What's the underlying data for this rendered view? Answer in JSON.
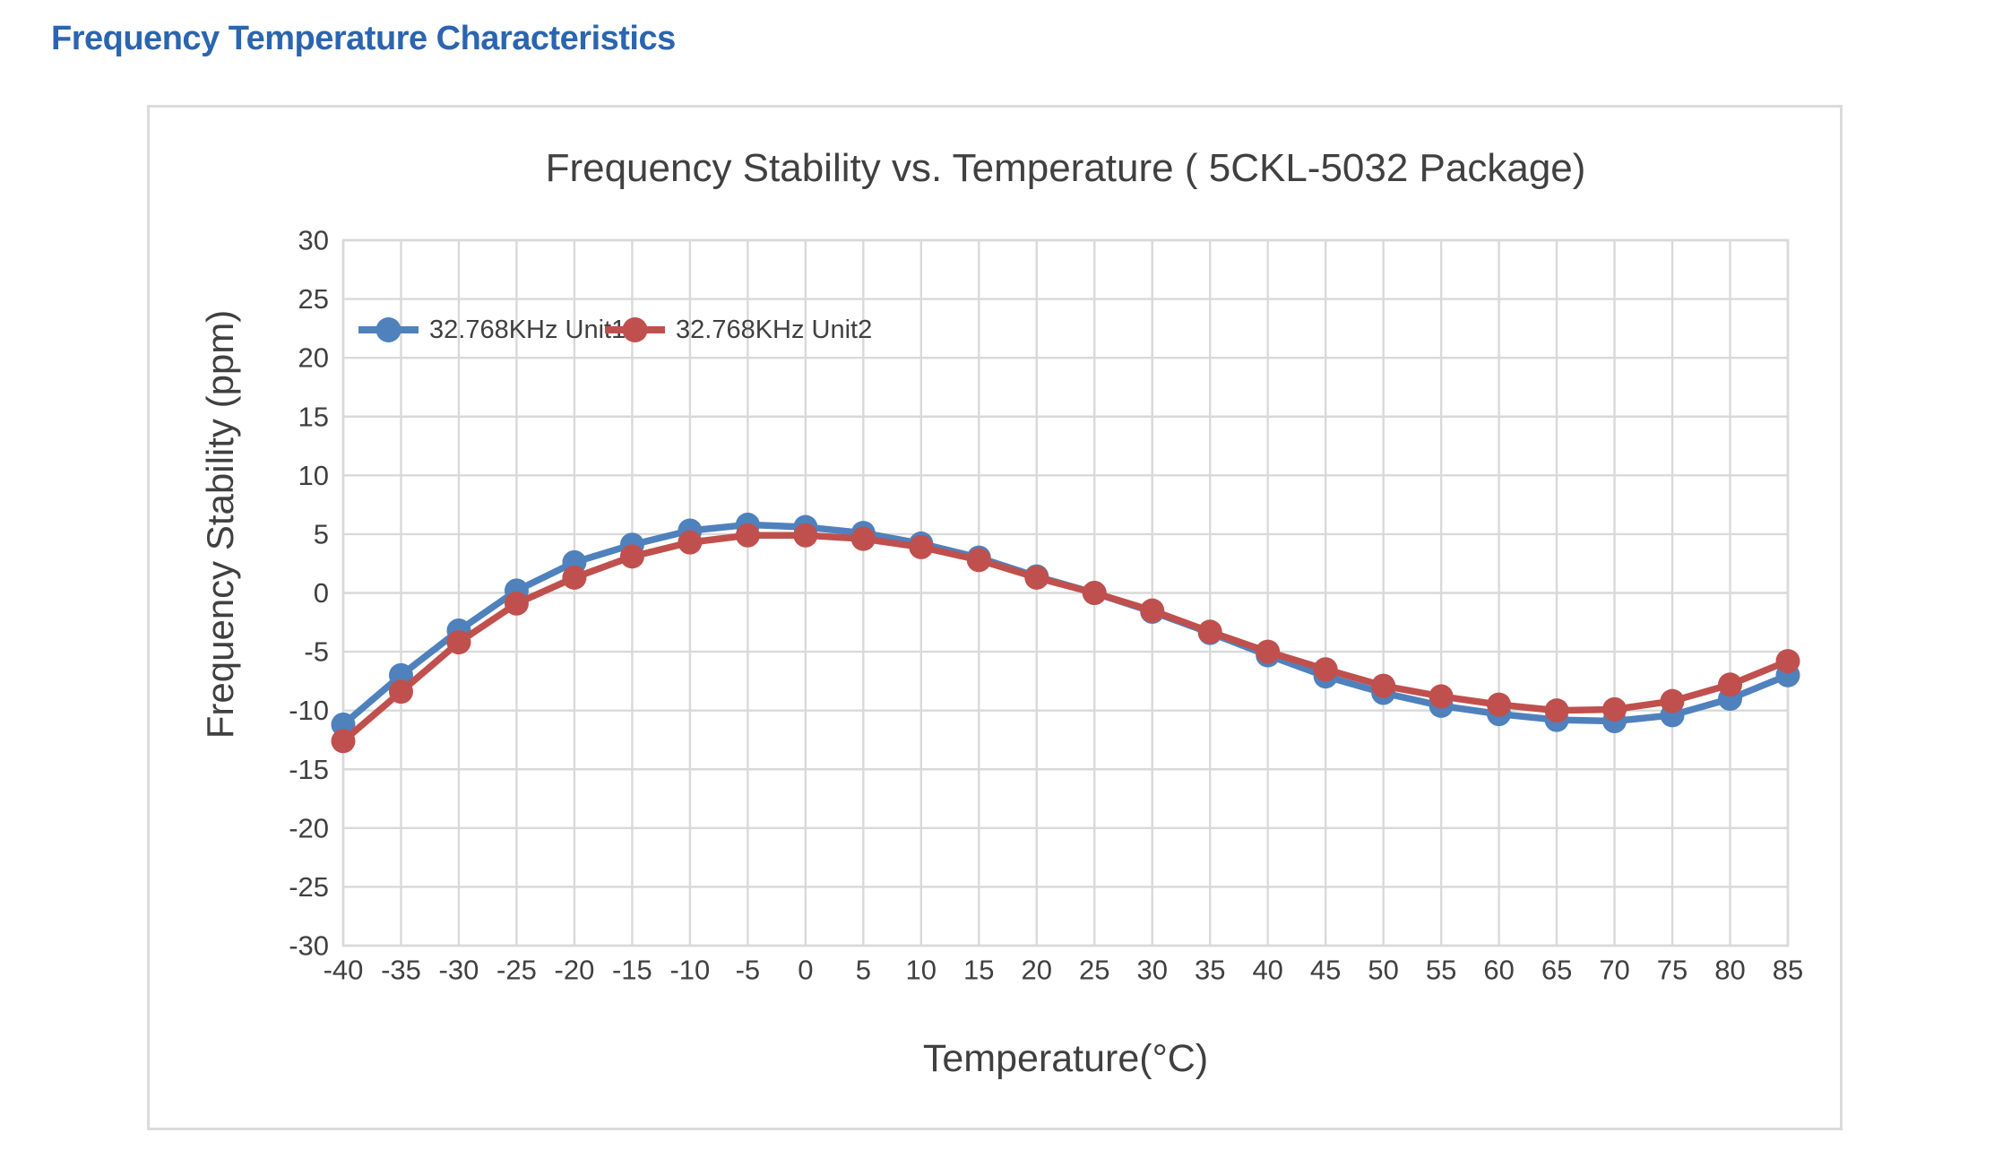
{
  "page": {
    "heading": "Frequency Temperature Characteristics"
  },
  "colors": {
    "heading": "#2B65AF",
    "grid": "#D9D9D9",
    "panel_border": "#DBDBDB",
    "text": "#404040",
    "unit1": "#4F81BD",
    "unit2": "#C0504D"
  },
  "chart_data": {
    "type": "line",
    "title": "Frequency Stability vs. Temperature ( 5CKL-5032 Package)",
    "xlabel": "Temperature(°C)",
    "ylabel": "Frequency Stability (ppm)",
    "x": [
      -40,
      -35,
      -30,
      -25,
      -20,
      -15,
      -10,
      -5,
      0,
      5,
      10,
      15,
      20,
      25,
      30,
      35,
      40,
      45,
      50,
      55,
      60,
      65,
      70,
      75,
      80,
      85
    ],
    "ylim": [
      -30,
      30
    ],
    "ytick_step": 5,
    "grid": true,
    "legend_position": "top-left-inside",
    "series": [
      {
        "name": "32.768KHz Unit1",
        "color": "#4F81BD",
        "values": [
          -11.2,
          -7,
          -3.2,
          0.2,
          2.6,
          4.1,
          5.3,
          5.8,
          5.6,
          5.1,
          4.2,
          3,
          1.4,
          0,
          -1.6,
          -3.4,
          -5.3,
          -7.1,
          -8.5,
          -9.6,
          -10.3,
          -10.8,
          -10.9,
          -10.4,
          -9,
          -7
        ]
      },
      {
        "name": "32.768KHz Unit2",
        "color": "#C0504D",
        "values": [
          -12.6,
          -8.4,
          -4.2,
          -0.9,
          1.3,
          3.1,
          4.3,
          4.9,
          4.9,
          4.6,
          3.9,
          2.8,
          1.3,
          0,
          -1.5,
          -3.3,
          -5,
          -6.5,
          -7.9,
          -8.8,
          -9.5,
          -10,
          -9.9,
          -9.2,
          -7.8,
          -5.8
        ]
      }
    ]
  }
}
